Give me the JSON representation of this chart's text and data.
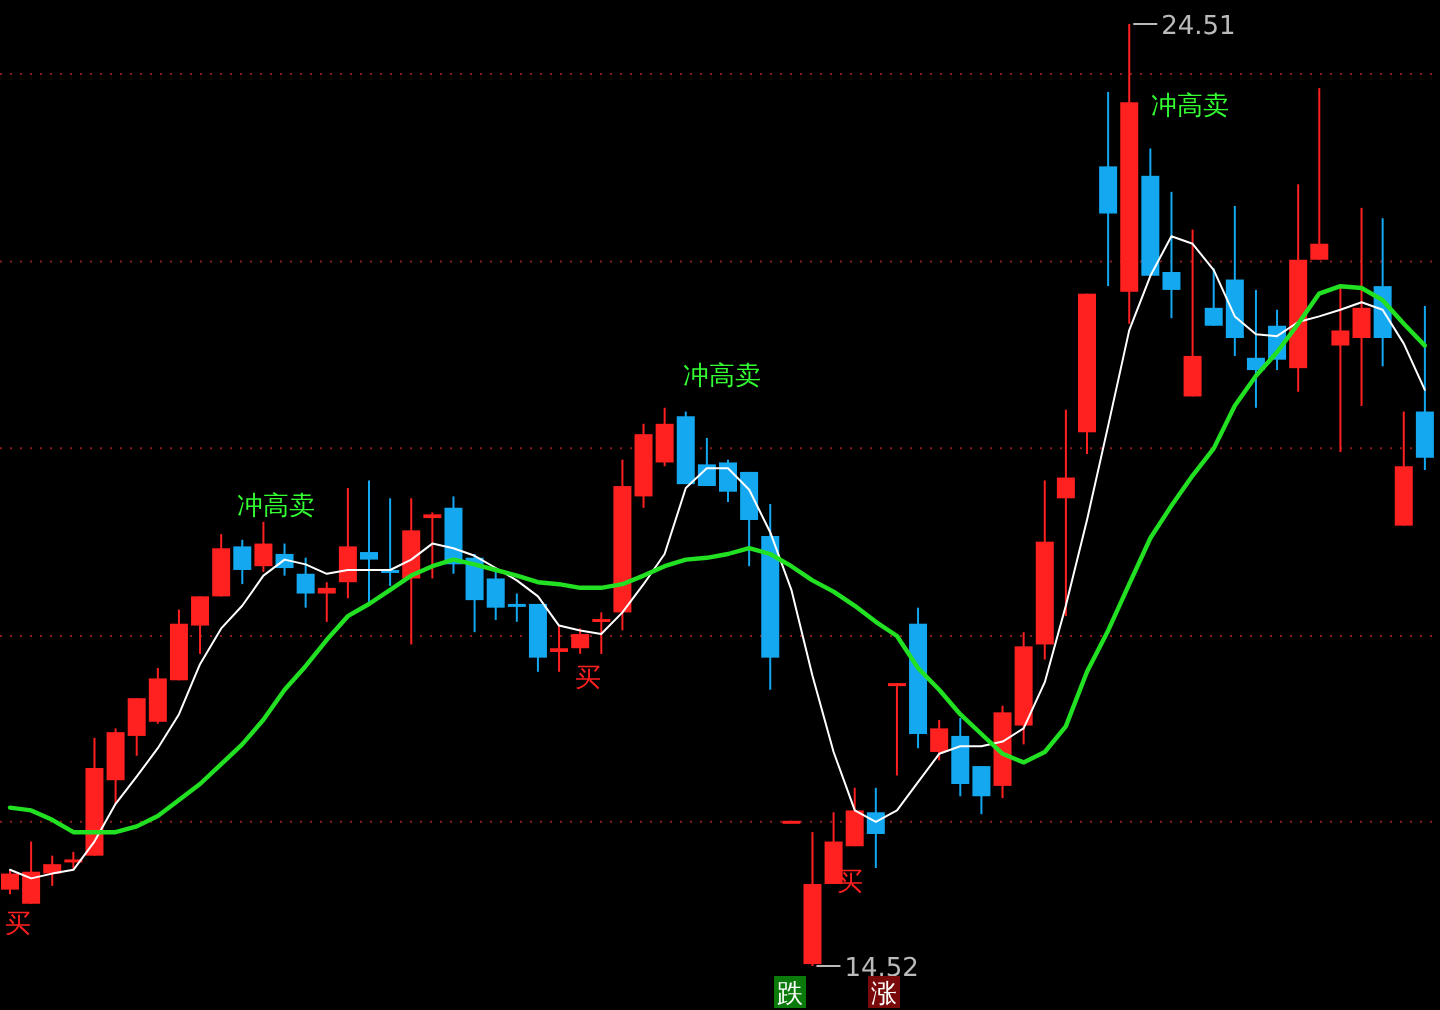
{
  "chart_data": {
    "type": "candlestick",
    "tick_labels": false,
    "ref_lines": [
      {
        "axis": "y",
        "value": 23.98,
        "color": "#8a1c1c",
        "line_style": "dotted"
      },
      {
        "axis": "y",
        "value": 21.99,
        "color": "#8a1c1c",
        "line_style": "dotted"
      },
      {
        "axis": "y",
        "value": 20.01,
        "color": "#8a1c1c",
        "line_style": "dotted"
      },
      {
        "axis": "y",
        "value": 18.02,
        "color": "#8a1c1c",
        "line_style": "dotted"
      },
      {
        "axis": "y",
        "value": 16.05,
        "color": "#8a1c1c",
        "line_style": "dotted"
      }
    ],
    "categories": [
      null,
      null,
      null,
      null,
      null,
      null,
      null,
      null,
      null,
      null,
      null,
      null,
      null,
      null,
      null,
      null,
      null,
      null,
      null,
      null,
      null,
      null,
      null,
      null,
      null,
      null,
      null,
      null,
      null,
      null,
      null,
      null,
      null,
      null,
      null,
      null,
      null,
      null,
      null,
      null,
      null,
      null,
      null,
      null,
      null,
      null,
      null,
      null,
      null,
      null,
      null,
      null,
      null,
      null,
      null,
      null,
      null,
      null,
      null,
      null,
      null,
      null,
      null,
      null,
      null,
      null,
      null,
      null
    ],
    "ohlc": [
      [
        15.33,
        15.54,
        15.28,
        15.5
      ],
      [
        15.18,
        15.84,
        15.18,
        15.52
      ],
      [
        15.5,
        15.69,
        15.37,
        15.6
      ],
      [
        15.64,
        15.73,
        15.54,
        15.65
      ],
      [
        15.69,
        16.94,
        15.69,
        16.62
      ],
      [
        16.49,
        17.04,
        16.24,
        17.0
      ],
      [
        16.96,
        17.36,
        16.75,
        17.36
      ],
      [
        17.11,
        17.68,
        17.09,
        17.57
      ],
      [
        17.55,
        18.3,
        17.55,
        18.15
      ],
      [
        18.13,
        18.44,
        17.83,
        18.44
      ],
      [
        18.44,
        19.1,
        18.44,
        18.95
      ],
      [
        18.97,
        19.04,
        18.57,
        18.72
      ],
      [
        18.76,
        19.23,
        18.7,
        19.0
      ],
      [
        18.89,
        19.0,
        18.66,
        18.74
      ],
      [
        18.68,
        18.85,
        18.32,
        18.47
      ],
      [
        18.47,
        18.59,
        18.17,
        18.53
      ],
      [
        18.59,
        19.59,
        18.42,
        18.97
      ],
      [
        18.91,
        19.67,
        18.38,
        18.83
      ],
      [
        18.72,
        19.48,
        18.55,
        18.7
      ],
      [
        18.63,
        19.48,
        17.93,
        19.14
      ],
      [
        19.27,
        19.33,
        18.63,
        19.31
      ],
      [
        19.38,
        19.5,
        18.68,
        18.78
      ],
      [
        18.85,
        18.89,
        18.06,
        18.4
      ],
      [
        18.63,
        18.7,
        18.19,
        18.32
      ],
      [
        18.36,
        18.47,
        18.17,
        18.34
      ],
      [
        18.36,
        18.36,
        17.64,
        17.79
      ],
      [
        17.85,
        18.13,
        17.64,
        17.89
      ],
      [
        17.89,
        18.1,
        17.83,
        18.04
      ],
      [
        18.19,
        18.27,
        17.83,
        18.2
      ],
      [
        18.27,
        19.89,
        18.08,
        19.61
      ],
      [
        19.5,
        20.27,
        19.38,
        20.16
      ],
      [
        19.86,
        20.44,
        19.82,
        20.27
      ],
      [
        20.35,
        20.4,
        19.63,
        19.63
      ],
      [
        19.84,
        20.12,
        19.61,
        19.61
      ],
      [
        19.86,
        19.89,
        19.44,
        19.55
      ],
      [
        19.76,
        19.76,
        18.76,
        19.25
      ],
      [
        19.08,
        19.42,
        17.45,
        17.79
      ],
      [
        16.05,
        16.06,
        16.05,
        16.06
      ],
      [
        14.54,
        15.94,
        14.52,
        15.39
      ],
      [
        15.39,
        16.15,
        15.39,
        15.84
      ],
      [
        15.79,
        16.41,
        15.79,
        16.17
      ],
      [
        16.15,
        16.41,
        15.56,
        15.92
      ],
      [
        17.51,
        17.52,
        16.54,
        17.52
      ],
      [
        18.15,
        18.32,
        16.83,
        16.98
      ],
      [
        16.79,
        17.13,
        16.7,
        17.04
      ],
      [
        16.96,
        17.15,
        16.32,
        16.45
      ],
      [
        16.64,
        16.64,
        16.13,
        16.32
      ],
      [
        16.43,
        17.28,
        16.3,
        17.21
      ],
      [
        17.07,
        18.06,
        16.87,
        17.91
      ],
      [
        17.93,
        19.67,
        17.77,
        19.02
      ],
      [
        19.48,
        20.42,
        18.23,
        19.7
      ],
      [
        20.18,
        21.65,
        19.95,
        21.65
      ],
      [
        23.0,
        23.79,
        21.73,
        22.5
      ],
      [
        21.67,
        24.51,
        21.33,
        23.68
      ],
      [
        22.9,
        23.19,
        21.84,
        21.84
      ],
      [
        21.88,
        22.73,
        21.39,
        21.69
      ],
      [
        20.56,
        22.33,
        20.56,
        20.99
      ],
      [
        21.5,
        21.92,
        21.31,
        21.31
      ],
      [
        21.8,
        22.58,
        20.99,
        21.18
      ],
      [
        20.97,
        21.69,
        20.44,
        20.84
      ],
      [
        21.31,
        21.48,
        20.84,
        20.95
      ],
      [
        20.86,
        22.81,
        20.61,
        22.01
      ],
      [
        22.01,
        23.83,
        22.01,
        22.18
      ],
      [
        21.1,
        21.71,
        19.97,
        21.26
      ],
      [
        21.18,
        22.56,
        20.46,
        21.5
      ],
      [
        21.73,
        22.45,
        20.88,
        21.18
      ],
      [
        19.19,
        20.4,
        19.19,
        19.82
      ],
      [
        20.4,
        21.52,
        19.78,
        19.91
      ]
    ],
    "colors": [
      "#ff2020",
      "#ff2020",
      "#ff2020",
      "#ff2020",
      "#ff2020",
      "#ff2020",
      "#ff2020",
      "#ff2020",
      "#ff2020",
      "#ff2020",
      "#ff2020",
      "#14a8f0",
      "#ff2020",
      "#14a8f0",
      "#14a8f0",
      "#ff2020",
      "#ff2020",
      "#14a8f0",
      "#14a8f0",
      "#ff2020",
      "#ff2020",
      "#14a8f0",
      "#14a8f0",
      "#14a8f0",
      "#14a8f0",
      "#14a8f0",
      "#ff2020",
      "#ff2020",
      "#ff2020",
      "#ff2020",
      "#ff2020",
      "#ff2020",
      "#14a8f0",
      "#14a8f0",
      "#14a8f0",
      "#14a8f0",
      "#14a8f0",
      "#ff2020",
      "#ff2020",
      "#ff2020",
      "#ff2020",
      "#14a8f0",
      "#ff2020",
      "#14a8f0",
      "#ff2020",
      "#14a8f0",
      "#14a8f0",
      "#ff2020",
      "#ff2020",
      "#ff2020",
      "#ff2020",
      "#ff2020",
      "#14a8f0",
      "#ff2020",
      "#14a8f0",
      "#14a8f0",
      "#ff2020",
      "#14a8f0",
      "#14a8f0",
      "#14a8f0",
      "#14a8f0",
      "#ff2020",
      "#ff2020",
      "#ff2020",
      "#ff2020",
      "#14a8f0",
      "#ff2020",
      "#14a8f0"
    ],
    "series": [
      {
        "type": "line",
        "color": "#ffffff",
        "values": [
          15.54,
          15.45,
          15.5,
          15.54,
          15.84,
          16.24,
          16.53,
          16.83,
          17.19,
          17.72,
          18.1,
          18.34,
          18.66,
          18.83,
          18.78,
          18.68,
          18.72,
          18.72,
          18.72,
          18.83,
          19.0,
          18.95,
          18.87,
          18.74,
          18.61,
          18.44,
          18.13,
          18.08,
          18.04,
          18.27,
          18.57,
          18.89,
          19.59,
          19.8,
          19.8,
          19.57,
          19.12,
          18.51,
          17.6,
          16.79,
          16.17,
          16.05,
          16.17,
          16.47,
          16.77,
          16.85,
          16.85,
          16.9,
          17.04,
          17.53,
          18.34,
          19.25,
          20.25,
          21.26,
          21.84,
          22.26,
          22.18,
          21.9,
          21.41,
          21.22,
          21.2,
          21.35,
          21.41,
          21.48,
          21.56,
          21.48,
          21.12,
          20.63
        ]
      },
      {
        "type": "line",
        "color": "#22e022",
        "values": [
          16.2,
          16.17,
          16.07,
          15.94,
          15.94,
          15.94,
          16.0,
          16.11,
          16.28,
          16.45,
          16.66,
          16.87,
          17.13,
          17.45,
          17.7,
          17.98,
          18.23,
          18.36,
          18.51,
          18.66,
          18.76,
          18.83,
          18.78,
          18.72,
          18.66,
          18.59,
          18.57,
          18.53,
          18.53,
          18.57,
          18.66,
          18.76,
          18.83,
          18.85,
          18.89,
          18.95,
          18.89,
          18.76,
          18.61,
          18.49,
          18.34,
          18.17,
          18.02,
          17.68,
          17.45,
          17.19,
          16.98,
          16.77,
          16.68,
          16.79,
          17.06,
          17.64,
          18.08,
          18.57,
          19.06,
          19.4,
          19.72,
          20.01,
          20.46,
          20.78,
          21.03,
          21.33,
          21.65,
          21.73,
          21.71,
          21.58,
          21.33,
          21.1
        ]
      }
    ],
    "annotations": [
      "24.51",
      "14.52",
      "冲高卖",
      "冲高卖",
      "冲高卖",
      "买",
      "买",
      "买",
      "跌",
      "涨"
    ]
  }
}
